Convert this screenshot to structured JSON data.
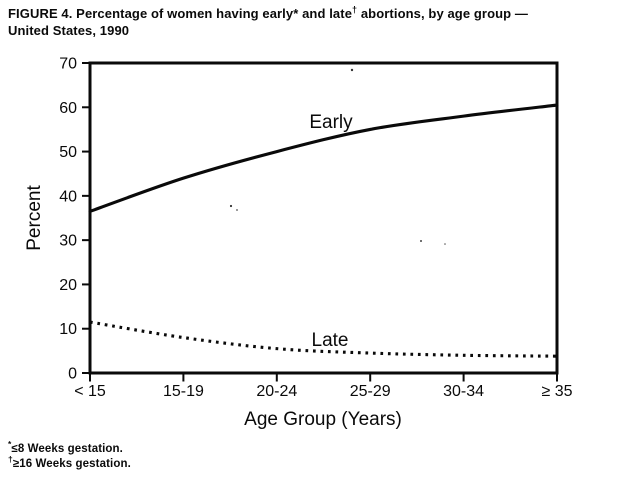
{
  "figure": {
    "title_part1": "FIGURE 4. Percentage of women having early* and late",
    "title_dagger": "†",
    "title_part2": " abortions, by age group —",
    "title_line2": "United States, 1990"
  },
  "footnotes": [
    {
      "marker": "*",
      "text": "≤8 Weeks gestation."
    },
    {
      "marker": "†",
      "text": "≥16 Weeks gestation."
    }
  ],
  "chart_data": {
    "type": "line",
    "categories": [
      "< 15",
      "15-19",
      "20-24",
      "25-29",
      "30-34",
      "≥ 35"
    ],
    "series": [
      {
        "name": "Early",
        "style": "solid",
        "values": [
          36.5,
          44.0,
          50.0,
          55.0,
          58.0,
          60.5
        ]
      },
      {
        "name": "Late",
        "style": "dotted",
        "values": [
          11.5,
          8.0,
          5.5,
          4.5,
          4.0,
          3.8
        ]
      }
    ],
    "title": "FIGURE 4. Percentage of women having early* and late† abortions, by age group — United States, 1990",
    "xlabel": "Age Group (Years)",
    "ylabel": "Percent",
    "ylim": [
      0,
      70
    ],
    "yticks": [
      0,
      10,
      20,
      30,
      40,
      50,
      60,
      70
    ],
    "grid": false,
    "legend": "inline-labels"
  },
  "colors": {
    "ink": "#0a0a0a",
    "paper": "#ffffff"
  }
}
